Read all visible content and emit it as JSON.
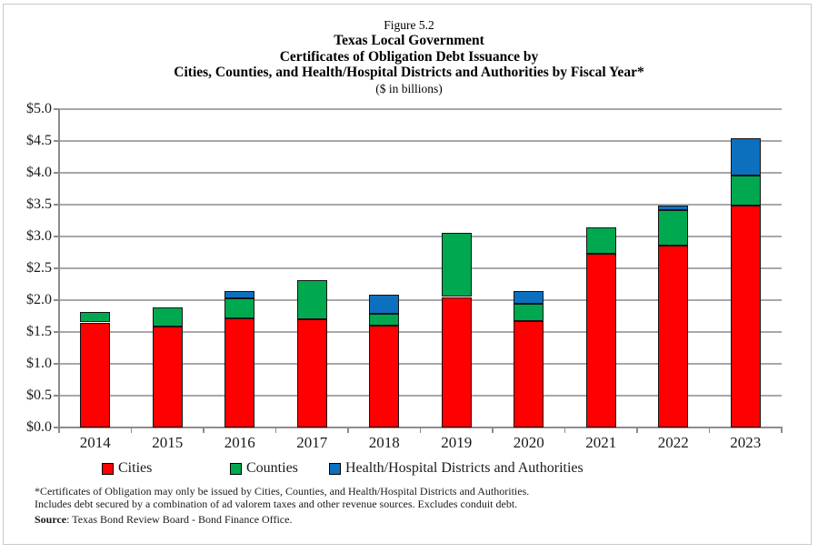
{
  "title": {
    "figure": "Figure 5.2",
    "line1": "Texas Local Government",
    "line2": "Certificates of Obligation Debt Issuance by",
    "line3": "Cities, Counties, and Health/Hospital Districts and Authorities by Fiscal Year*",
    "subtitle": "($ in billions)"
  },
  "chart_data": {
    "type": "bar",
    "stacked": true,
    "title": "Texas Local Government Certificates of Obligation Debt Issuance by Cities, Counties, and Health/Hospital Districts and Authorities by Fiscal Year*",
    "units": "$ in billions",
    "xlabel": "",
    "ylabel": "",
    "categories": [
      "2014",
      "2015",
      "2016",
      "2017",
      "2018",
      "2019",
      "2020",
      "2021",
      "2022",
      "2023"
    ],
    "series": [
      {
        "name": "Cities",
        "color": "#fe0000",
        "values": [
          1.65,
          1.58,
          1.72,
          1.7,
          1.6,
          2.05,
          1.67,
          2.73,
          2.86,
          3.49
        ]
      },
      {
        "name": "Counties",
        "color": "#00a94f",
        "values": [
          0.17,
          0.3,
          0.31,
          0.62,
          0.19,
          1.01,
          0.27,
          0.42,
          0.55,
          0.47
        ]
      },
      {
        "name": "Health/Hospital Districts and Authorities",
        "color": "#0c70bf",
        "values": [
          0.0,
          0.0,
          0.11,
          0.0,
          0.3,
          0.0,
          0.21,
          0.0,
          0.07,
          0.58
        ]
      }
    ],
    "totals": [
      1.82,
      1.88,
      2.14,
      2.32,
      2.09,
      3.06,
      2.15,
      3.15,
      3.48,
      4.54
    ],
    "ylim": [
      0,
      5.0
    ],
    "ytick_step": 0.5,
    "ytick_labels": [
      "$0.0",
      "$0.5",
      "$1.0",
      "$1.5",
      "$2.0",
      "$2.5",
      "$3.0",
      "$3.5",
      "$4.0",
      "$4.5",
      "$5.0"
    ],
    "grid": true,
    "legend_position": "bottom"
  },
  "footnotes": {
    "line1": "*Certificates of Obligation may only be issued by Cities, Counties, and Health/Hospital Districts and Authorities.",
    "line2": "Includes debt secured by a combination of ad valorem taxes and other revenue sources. Excludes conduit debt.",
    "source_label": "Source",
    "source_text": ": Texas Bond Review Board - Bond Finance Office."
  },
  "colors": {
    "cities": "#fe0000",
    "counties": "#00a94f",
    "health_hospital": "#0c70bf",
    "gridline": "#a8a8a8",
    "axis": "#8c8c8c",
    "frame_border": "#c9c9c9",
    "bar_outline": "#141414"
  }
}
